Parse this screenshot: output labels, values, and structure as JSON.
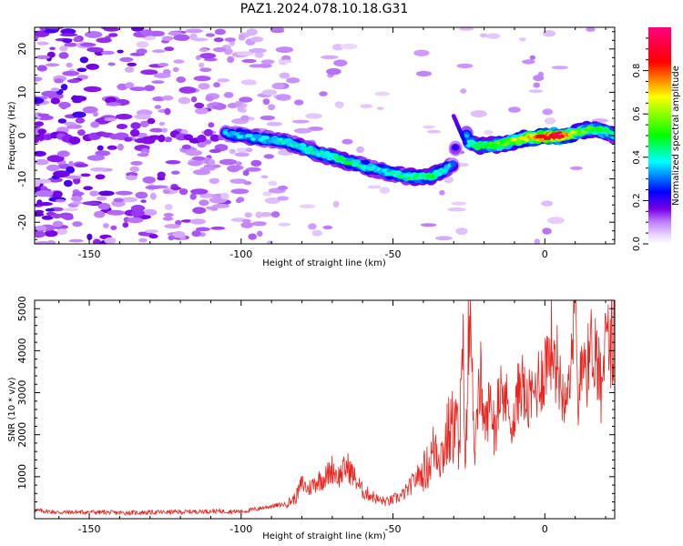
{
  "chart_data": [
    {
      "type": "heatmap",
      "title": "PAZ1.2024.078.10.18.G31",
      "xlabel": "Height of straight line (km)",
      "ylabel": "Frequency (Hz)",
      "xlim": [
        -168,
        23
      ],
      "ylim": [
        -25,
        25
      ],
      "xticks": [
        "-150",
        "-100",
        "-50",
        "0"
      ],
      "yticks": [
        "20",
        "10",
        "0",
        "-10",
        "-20"
      ],
      "colorbar": {
        "label": "Normalized spectral amplitude",
        "range": [
          0.0,
          1.0
        ],
        "ticks": [
          "0.0",
          "0.2",
          "0.4",
          "0.6",
          "0.8"
        ],
        "colormap": [
          "#ffffff",
          "#ead6fb",
          "#c080ff",
          "#7a00e6",
          "#0000ff",
          "#00ffff",
          "#00ff00",
          "#ffff00",
          "#ff0000",
          "#ff0080"
        ]
      },
      "ridge": {
        "x": [
          -105,
          -95,
          -85,
          -75,
          -65,
          -55,
          -45,
          -38,
          -33,
          -30,
          -28,
          -25,
          -22,
          -15,
          -5,
          5,
          10,
          15,
          20,
          23
        ],
        "y": [
          0.5,
          -0.5,
          -1.5,
          -4.0,
          -6.0,
          -8.0,
          -9.5,
          -9.5,
          -8.0,
          -6.5,
          5.0,
          -1.5,
          -2.5,
          -2.0,
          -0.5,
          0.0,
          0.5,
          1.5,
          1.0,
          0.0
        ],
        "amplitude": [
          0.35,
          0.38,
          0.4,
          0.42,
          0.45,
          0.38,
          0.45,
          0.48,
          0.42,
          0.3,
          0.15,
          0.45,
          0.5,
          0.55,
          0.7,
          0.95,
          0.6,
          0.55,
          0.5,
          0.4
        ]
      }
    },
    {
      "type": "line",
      "xlabel": "Height of straight line (km)",
      "ylabel": "SNR (10 * v/v)",
      "xlim": [
        -168,
        23
      ],
      "ylim": [
        0,
        5200
      ],
      "xticks": [
        "-150",
        "-100",
        "-50",
        "0"
      ],
      "yticks": [
        "1000",
        "2000",
        "3000",
        "4000",
        "5000"
      ],
      "color": "#e8251f",
      "series": [
        {
          "x": [
            -168,
            -160,
            -150,
            -140,
            -130,
            -120,
            -110,
            -100,
            -95,
            -90,
            -85,
            -82,
            -80,
            -78,
            -75,
            -72,
            -70,
            -68,
            -65,
            -62,
            -60,
            -57,
            -55,
            -52,
            -50,
            -47,
            -45,
            -42,
            -40,
            -38,
            -36,
            -34,
            -32,
            -30,
            -28,
            -27,
            -26,
            -25,
            -24,
            -23,
            -22,
            -21,
            -20,
            -18,
            -16,
            -14,
            -12,
            -10,
            -8,
            -6,
            -4,
            -2,
            0,
            2,
            4,
            6,
            8,
            9,
            10,
            11,
            12,
            14,
            16,
            18,
            20,
            22,
            23
          ],
          "y": [
            200,
            150,
            160,
            140,
            150,
            160,
            180,
            170,
            230,
            300,
            350,
            500,
            850,
            700,
            900,
            1000,
            1200,
            1000,
            1250,
            900,
            650,
            550,
            450,
            400,
            450,
            550,
            700,
            1000,
            1100,
            1300,
            1800,
            1500,
            2000,
            2200,
            2000,
            3700,
            1500,
            4600,
            3900,
            1300,
            2800,
            3400,
            2100,
            2800,
            2200,
            3100,
            2600,
            2300,
            3400,
            2700,
            2900,
            3300,
            3600,
            4200,
            3700,
            3000,
            3600,
            3500,
            5200,
            2300,
            4200,
            3600,
            4300,
            3500,
            4100,
            4300,
            4200
          ]
        }
      ]
    }
  ]
}
